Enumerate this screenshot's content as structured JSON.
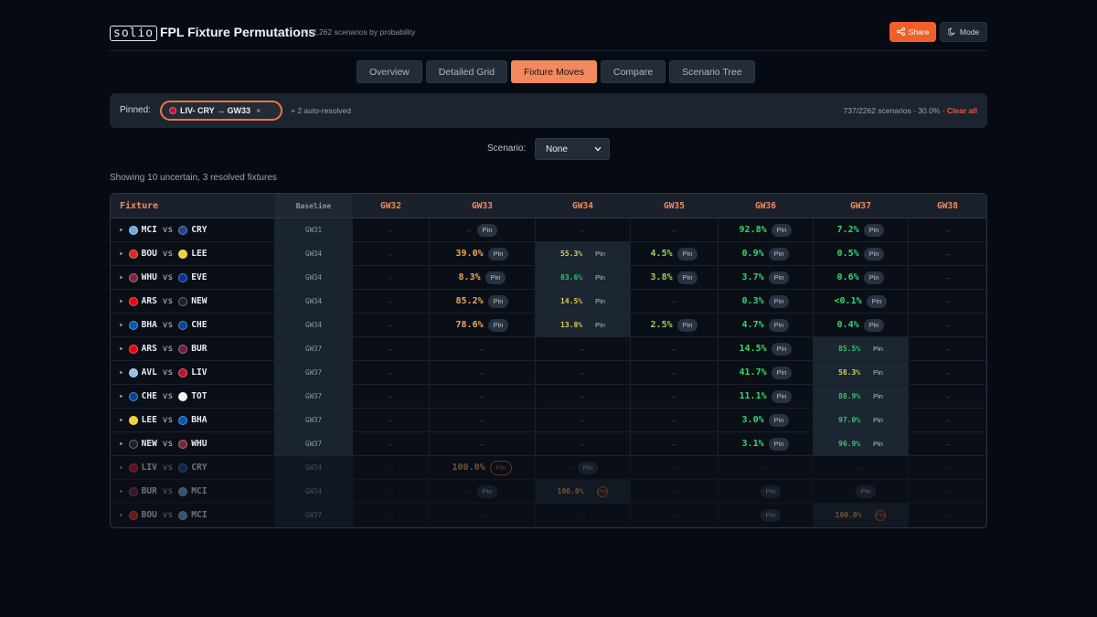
{
  "header": {
    "logo": "solio",
    "title": "FPL Fixture Permutations",
    "subtitle": "All 2,262 scenarios by probability",
    "share_label": "Share",
    "mode_label": "Mode",
    "accent": "#f2602a"
  },
  "tabs": [
    "Overview",
    "Detailed Grid",
    "Fixture Moves",
    "Compare",
    "Scenario Tree"
  ],
  "active_tab": "Fixture Moves",
  "pinned": {
    "label": "Pinned:",
    "chip": "LIV- CRY → GW33",
    "chip_close": "×",
    "auto": "+ 2 auto-resolved",
    "stats": "737/2262 scenarios · 30.0% · ",
    "clear": "Clear all"
  },
  "scenario": {
    "label": "Scenario:",
    "value": "None"
  },
  "showing": "Showing 10 uncertain, 3 resolved fixtures",
  "table": {
    "headers": [
      "Fixture",
      "Baseline",
      "GW32",
      "GW33",
      "GW34",
      "GW35",
      "GW36",
      "GW37",
      "GW38"
    ],
    "pin_label": "Pin",
    "vs": "vs",
    "rows": [
      {
        "home": "MCI",
        "away": "CRY",
        "baseline": "GW31",
        "cells": [
          "–",
          "–",
          "–",
          "–",
          "92.8%",
          "7.2%",
          "–"
        ],
        "pins": [
          0,
          1,
          0,
          0,
          1,
          1,
          0
        ]
      },
      {
        "home": "BOU",
        "away": "LEE",
        "baseline": "GW34",
        "cells": [
          "–",
          "39.0%",
          "55.3%",
          "4.5%",
          "0.9%",
          "0.5%",
          "–"
        ],
        "pins": [
          0,
          1,
          1,
          1,
          1,
          1,
          0
        ]
      },
      {
        "home": "WHU",
        "away": "EVE",
        "baseline": "GW34",
        "cells": [
          "–",
          "8.3%",
          "83.6%",
          "3.8%",
          "3.7%",
          "0.6%",
          "–"
        ],
        "pins": [
          0,
          1,
          1,
          1,
          1,
          1,
          0
        ]
      },
      {
        "home": "ARS",
        "away": "NEW",
        "baseline": "GW34",
        "cells": [
          "–",
          "85.2%",
          "14.5%",
          "–",
          "0.3%",
          "<0.1%",
          "–"
        ],
        "pins": [
          0,
          1,
          1,
          0,
          1,
          1,
          0
        ]
      },
      {
        "home": "BHA",
        "away": "CHE",
        "baseline": "GW34",
        "cells": [
          "–",
          "78.6%",
          "13.8%",
          "2.5%",
          "4.7%",
          "0.4%",
          "–"
        ],
        "pins": [
          0,
          1,
          1,
          1,
          1,
          1,
          0
        ]
      },
      {
        "home": "ARS",
        "away": "BUR",
        "baseline": "GW37",
        "cells": [
          "–",
          "–",
          "–",
          "–",
          "14.5%",
          "85.5%",
          "–"
        ],
        "pins": [
          0,
          0,
          0,
          0,
          1,
          1,
          0
        ]
      },
      {
        "home": "AVL",
        "away": "LIV",
        "baseline": "GW37",
        "cells": [
          "–",
          "–",
          "–",
          "–",
          "41.7%",
          "58.3%",
          "–"
        ],
        "pins": [
          0,
          0,
          0,
          0,
          1,
          1,
          0
        ]
      },
      {
        "home": "CHE",
        "away": "TOT",
        "baseline": "GW37",
        "cells": [
          "–",
          "–",
          "–",
          "–",
          "11.1%",
          "88.9%",
          "–"
        ],
        "pins": [
          0,
          0,
          0,
          0,
          1,
          1,
          0
        ]
      },
      {
        "home": "LEE",
        "away": "BHA",
        "baseline": "GW37",
        "cells": [
          "–",
          "–",
          "–",
          "–",
          "3.0%",
          "97.0%",
          "–"
        ],
        "pins": [
          0,
          0,
          0,
          0,
          1,
          1,
          0
        ]
      },
      {
        "home": "NEW",
        "away": "WHU",
        "baseline": "GW37",
        "cells": [
          "–",
          "–",
          "–",
          "–",
          "3.1%",
          "96.9%",
          "–"
        ],
        "pins": [
          0,
          0,
          0,
          0,
          1,
          1,
          0
        ]
      },
      {
        "home": "LIV",
        "away": "CRY",
        "baseline": "GW34",
        "cells": [
          "–",
          "100.0%",
          "–",
          "–",
          "–",
          "–",
          "–"
        ],
        "pins": [
          0,
          2,
          1,
          0,
          0,
          0,
          0
        ]
      },
      {
        "home": "BUR",
        "away": "MCI",
        "baseline": "GW34",
        "cells": [
          "–",
          "–",
          "100.0%",
          "–",
          "–",
          "–",
          "–"
        ],
        "pins": [
          0,
          1,
          2,
          0,
          1,
          1,
          0
        ]
      },
      {
        "home": "BOU",
        "away": "MCI",
        "baseline": "GW37",
        "cells": [
          "–",
          "–",
          "–",
          "–",
          "–",
          "100.0%",
          "–"
        ],
        "pins": [
          0,
          0,
          0,
          0,
          1,
          2,
          0
        ]
      }
    ]
  },
  "team_colors": {
    "MCI": "#6cabdd",
    "CRY": "#1b458f",
    "BOU": "#da291c",
    "LEE": "#f3d22d",
    "WHU": "#7a263a",
    "EVE": "#003399",
    "ARS": "#ef0107",
    "NEW": "#241f20",
    "BHA": "#0057b8",
    "CHE": "#034694",
    "BUR": "#6c1d45",
    "AVL": "#95bfe5",
    "LIV": "#c8102e",
    "TOT": "#f4f4f4"
  }
}
